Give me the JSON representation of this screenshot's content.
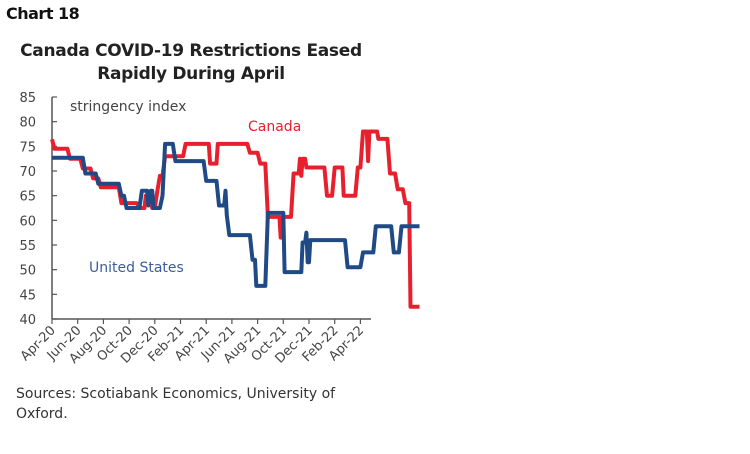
{
  "header": {
    "chart_label": "Chart 18"
  },
  "footer": {
    "source": "Sources: Scotiabank Economics, University of Oxford."
  },
  "chart_data": {
    "type": "line",
    "title": "Canada COVID-19 Restrictions Eased Rapidly During April",
    "ylabel_annotation": "stringency index",
    "xlabel": "",
    "ylim": [
      40,
      85
    ],
    "yticks": [
      40,
      45,
      50,
      55,
      60,
      65,
      70,
      75,
      80,
      85
    ],
    "xticks": [
      "Apr-20",
      "Jun-20",
      "Aug-20",
      "Oct-20",
      "Dec-20",
      "Feb-21",
      "Apr-21",
      "Jun-21",
      "Aug-21",
      "Oct-21",
      "Dec-21",
      "Feb-22",
      "Apr-22"
    ],
    "x_unit": "months since Apr-20",
    "grid": false,
    "series": [
      {
        "name": "Canada",
        "color": "#e8202e",
        "label": "Canada",
        "points": [
          [
            0,
            76.4
          ],
          [
            0.2,
            74.5
          ],
          [
            1.2,
            74.5
          ],
          [
            1.4,
            72.5
          ],
          [
            2.2,
            72.5
          ],
          [
            2.4,
            70.5
          ],
          [
            3.0,
            70.5
          ],
          [
            3.2,
            68.5
          ],
          [
            3.6,
            68.5
          ],
          [
            3.8,
            66.7
          ],
          [
            5.2,
            66.7
          ],
          [
            5.4,
            63.5
          ],
          [
            6.6,
            63.5
          ],
          [
            6.8,
            62.5
          ],
          [
            7.2,
            62.5
          ],
          [
            7.3,
            65
          ],
          [
            7.6,
            65
          ],
          [
            7.8,
            62.5
          ],
          [
            8.0,
            62.5
          ],
          [
            8.2,
            66
          ],
          [
            8.4,
            69
          ],
          [
            8.6,
            69
          ],
          [
            8.8,
            73
          ],
          [
            10.2,
            73
          ],
          [
            10.4,
            75.5
          ],
          [
            12.2,
            75.5
          ],
          [
            12.3,
            71.5
          ],
          [
            12.8,
            71.5
          ],
          [
            12.9,
            75.5
          ],
          [
            15.2,
            75.5
          ],
          [
            15.4,
            73.7
          ],
          [
            16.0,
            73.7
          ],
          [
            16.2,
            71.5
          ],
          [
            16.6,
            71.5
          ],
          [
            16.8,
            60.7
          ],
          [
            17.7,
            60.7
          ],
          [
            17.8,
            56.5
          ],
          [
            17.9,
            60.7
          ],
          [
            18.6,
            60.7
          ],
          [
            18.8,
            69.5
          ],
          [
            19.2,
            69.5
          ],
          [
            19.3,
            72.5
          ],
          [
            19.4,
            69
          ],
          [
            19.5,
            72.5
          ],
          [
            19.7,
            72.5
          ],
          [
            19.8,
            70.7
          ],
          [
            21.2,
            70.7
          ],
          [
            21.4,
            65
          ],
          [
            21.8,
            65
          ],
          [
            22.0,
            70.7
          ],
          [
            22.6,
            70.7
          ],
          [
            22.7,
            65
          ],
          [
            23.6,
            65
          ],
          [
            23.8,
            70.7
          ],
          [
            24.0,
            70.7
          ],
          [
            24.2,
            78
          ],
          [
            24.5,
            78
          ],
          [
            24.6,
            72
          ],
          [
            24.7,
            78
          ],
          [
            25.3,
            78
          ],
          [
            25.4,
            76.5
          ],
          [
            26.1,
            76.5
          ],
          [
            26.3,
            69.5
          ],
          [
            26.7,
            69.5
          ],
          [
            26.9,
            66.3
          ],
          [
            27.3,
            66.3
          ],
          [
            27.5,
            63.5
          ],
          [
            27.8,
            63.5
          ],
          [
            27.9,
            42.5
          ],
          [
            28.6,
            42.5
          ]
        ]
      },
      {
        "name": "United States",
        "color": "#1f4a86",
        "label": "United States",
        "points": [
          [
            0,
            72.7
          ],
          [
            2.4,
            72.7
          ],
          [
            2.6,
            69.5
          ],
          [
            3.4,
            69.5
          ],
          [
            3.6,
            67.4
          ],
          [
            5.2,
            67.4
          ],
          [
            5.4,
            65
          ],
          [
            5.6,
            65
          ],
          [
            5.8,
            62.5
          ],
          [
            6.8,
            62.5
          ],
          [
            7.0,
            66
          ],
          [
            7.4,
            66
          ],
          [
            7.5,
            63
          ],
          [
            7.7,
            66
          ],
          [
            7.8,
            66
          ],
          [
            7.9,
            62.5
          ],
          [
            8.4,
            62.5
          ],
          [
            8.6,
            65
          ],
          [
            8.8,
            75.5
          ],
          [
            9.4,
            75.5
          ],
          [
            9.6,
            72
          ],
          [
            11.8,
            72
          ],
          [
            12.0,
            68
          ],
          [
            12.8,
            68
          ],
          [
            13.0,
            63
          ],
          [
            13.4,
            63
          ],
          [
            13.5,
            66
          ],
          [
            13.6,
            61
          ],
          [
            13.8,
            57
          ],
          [
            15.4,
            57
          ],
          [
            15.6,
            52
          ],
          [
            15.8,
            52
          ],
          [
            15.9,
            46.7
          ],
          [
            16.6,
            46.7
          ],
          [
            16.8,
            61.5
          ],
          [
            18.0,
            61.5
          ],
          [
            18.1,
            49.5
          ],
          [
            19.4,
            49.5
          ],
          [
            19.5,
            55.5
          ],
          [
            19.7,
            55.5
          ],
          [
            19.8,
            57.5
          ],
          [
            19.9,
            51.5
          ],
          [
            20.0,
            51.5
          ],
          [
            20.1,
            56
          ],
          [
            22.8,
            56
          ],
          [
            23.0,
            50.5
          ],
          [
            24.0,
            50.5
          ],
          [
            24.2,
            53.5
          ],
          [
            25.0,
            53.5
          ],
          [
            25.2,
            58.8
          ],
          [
            26.4,
            58.8
          ],
          [
            26.6,
            53.5
          ],
          [
            27.0,
            53.5
          ],
          [
            27.2,
            58.8
          ],
          [
            28.6,
            58.8
          ]
        ]
      }
    ]
  }
}
